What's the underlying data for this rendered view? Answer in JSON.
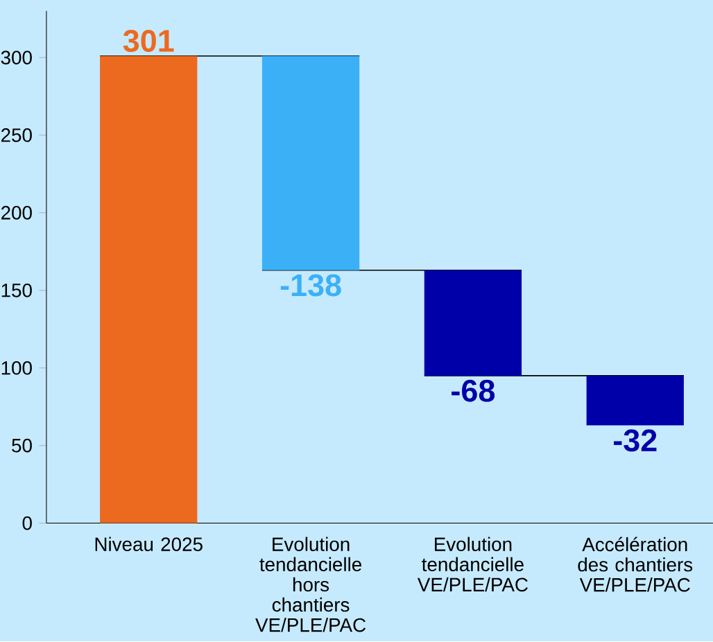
{
  "chart_data": {
    "type": "bar",
    "categories": [
      "Niveau 2025",
      "Evolution tendancielle hors chantiers VE/PLE/PAC",
      "Evolution tendancielle VE/PLE/PAC",
      "Accélération des chantiers VE/PLE/PAC"
    ],
    "values": [
      301,
      -138,
      -68,
      -32
    ],
    "base": [
      0,
      301,
      163,
      95
    ],
    "colors": [
      "#ec6a1f",
      "#3bb0f7",
      "#0000a8",
      "#0000a8"
    ],
    "value_labels": [
      "301",
      "-138",
      "-68",
      "-32"
    ],
    "ylim": [
      0,
      330
    ],
    "yticks": [
      0,
      50,
      100,
      150,
      200,
      250,
      300
    ]
  }
}
